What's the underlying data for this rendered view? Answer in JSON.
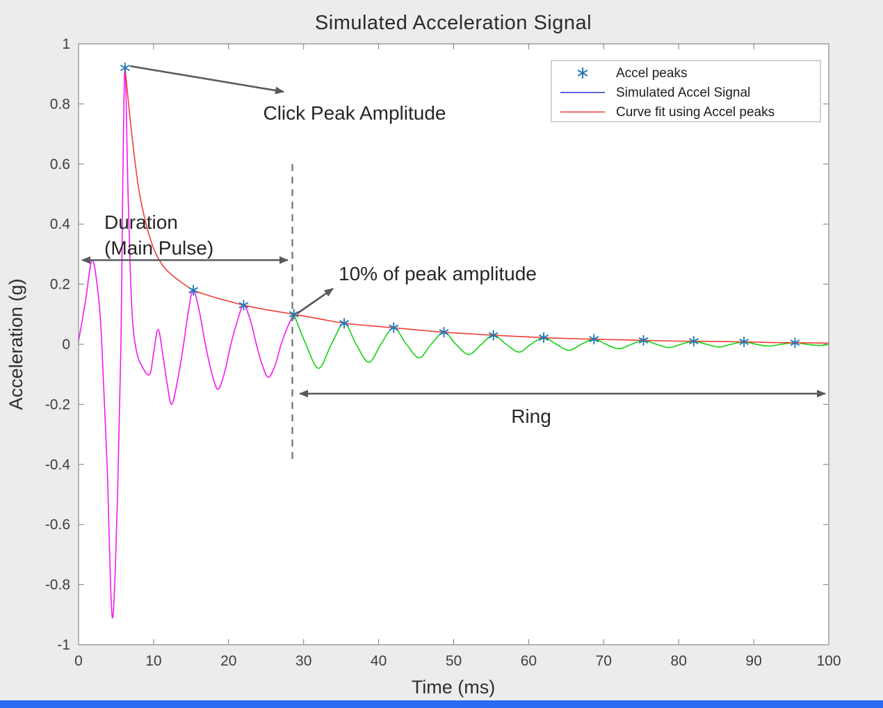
{
  "page": {
    "background_color": "#ececec",
    "accent_bar_color": "#2b6bf3"
  },
  "chart_data": {
    "type": "line",
    "title": "Simulated Acceleration Signal",
    "xlabel": "Time (ms)",
    "ylabel": "Acceleration (g)",
    "xlim": [
      0,
      100
    ],
    "ylim": [
      -1,
      1
    ],
    "grid": false,
    "xticks": [
      0,
      10,
      20,
      30,
      40,
      50,
      60,
      70,
      80,
      90,
      100
    ],
    "yticks": [
      -1,
      -0.8,
      -0.6,
      -0.4,
      -0.2,
      0,
      0.2,
      0.4,
      0.6,
      0.8,
      1
    ],
    "legend": {
      "position": "top-right",
      "entries": [
        {
          "label": "Accel peaks",
          "style": "asterisk-marker",
          "color": "#2478b4"
        },
        {
          "label": "Simulated Accel Signal",
          "style": "line",
          "color": "#3030d0"
        },
        {
          "label": "Curve fit using Accel peaks",
          "style": "line",
          "color": "#ee3e34"
        }
      ]
    },
    "series": [
      {
        "name": "main-pulse",
        "color": "#f416f4",
        "points": [
          [
            0,
            0.01
          ],
          [
            0.9,
            0.14
          ],
          [
            1.8,
            0.28
          ],
          [
            2.6,
            0.17
          ],
          [
            3.1,
            0
          ],
          [
            3.8,
            -0.4
          ],
          [
            4.5,
            -0.91
          ],
          [
            5.2,
            -0.5
          ],
          [
            5.65,
            0
          ],
          [
            5.9,
            0.55
          ],
          [
            6.2,
            0.92
          ],
          [
            6.6,
            0.5
          ],
          [
            7.1,
            0.12
          ],
          [
            7.7,
            -0.02
          ],
          [
            8.6,
            -0.08
          ],
          [
            9.5,
            -0.1
          ],
          [
            10,
            -0.03
          ],
          [
            10.6,
            0.05
          ],
          [
            11.2,
            -0.03
          ],
          [
            11.8,
            -0.13
          ],
          [
            12.4,
            -0.2
          ],
          [
            13.2,
            -0.12
          ],
          [
            14,
            0
          ],
          [
            14.7,
            0.12
          ],
          [
            15.3,
            0.18
          ],
          [
            16.1,
            0.11
          ],
          [
            16.9,
            0
          ],
          [
            17.8,
            -0.1
          ],
          [
            18.6,
            -0.15
          ],
          [
            19.5,
            -0.09
          ],
          [
            20.3,
            0
          ],
          [
            21.2,
            0.08
          ],
          [
            22,
            0.13
          ],
          [
            22.9,
            0.08
          ],
          [
            23.7,
            0
          ],
          [
            24.5,
            -0.07
          ],
          [
            25.3,
            -0.11
          ],
          [
            26.2,
            -0.07
          ],
          [
            27,
            0
          ],
          [
            27.9,
            0.06
          ],
          [
            28.7,
            0.1
          ]
        ]
      },
      {
        "name": "ring",
        "color": "#0fd30f",
        "points": [
          [
            28.7,
            0.1
          ],
          [
            30.3,
            0
          ],
          [
            32,
            -0.08
          ],
          [
            33.7,
            0
          ],
          [
            35.4,
            0.07
          ],
          [
            37,
            0
          ],
          [
            38.7,
            -0.06
          ],
          [
            40.3,
            0
          ],
          [
            42,
            0.055
          ],
          [
            43.7,
            0
          ],
          [
            45.4,
            -0.045
          ],
          [
            47,
            0
          ],
          [
            48.7,
            0.04
          ],
          [
            50.3,
            0
          ],
          [
            52,
            -0.034
          ],
          [
            53.7,
            0
          ],
          [
            55.3,
            0.03
          ],
          [
            57,
            0
          ],
          [
            58.7,
            -0.026
          ],
          [
            60.3,
            0
          ],
          [
            62,
            0.022
          ],
          [
            63.7,
            0
          ],
          [
            65.4,
            -0.02
          ],
          [
            67,
            0
          ],
          [
            68.7,
            0.017
          ],
          [
            70.3,
            0
          ],
          [
            72,
            -0.015
          ],
          [
            73.7,
            0
          ],
          [
            75.3,
            0.013
          ],
          [
            77,
            0
          ],
          [
            78.7,
            -0.011
          ],
          [
            80.3,
            0
          ],
          [
            82,
            0.01
          ],
          [
            83.7,
            0
          ],
          [
            85.4,
            -0.009
          ],
          [
            87,
            0
          ],
          [
            88.7,
            0.008
          ],
          [
            90.3,
            0
          ],
          [
            92,
            -0.006
          ],
          [
            93.7,
            0
          ],
          [
            95.5,
            0.005
          ],
          [
            97,
            0
          ],
          [
            98.7,
            -0.004
          ],
          [
            100,
            -0.001
          ]
        ]
      },
      {
        "name": "curve-fit",
        "color": "#ee3e34",
        "points": [
          [
            6.2,
            0.92
          ],
          [
            7,
            0.72
          ],
          [
            8,
            0.52
          ],
          [
            9,
            0.4
          ],
          [
            10,
            0.32
          ],
          [
            11,
            0.27
          ],
          [
            12,
            0.24
          ],
          [
            13.5,
            0.21
          ],
          [
            15.3,
            0.18
          ],
          [
            17,
            0.165
          ],
          [
            19,
            0.15
          ],
          [
            20.5,
            0.14
          ],
          [
            22,
            0.13
          ],
          [
            25,
            0.115
          ],
          [
            28.7,
            0.1
          ],
          [
            32,
            0.085
          ],
          [
            35.4,
            0.07
          ],
          [
            38.7,
            0.062
          ],
          [
            42,
            0.055
          ],
          [
            45.4,
            0.047
          ],
          [
            48.7,
            0.04
          ],
          [
            52,
            0.035
          ],
          [
            55.3,
            0.03
          ],
          [
            58.7,
            0.026
          ],
          [
            62,
            0.022
          ],
          [
            65.4,
            0.019
          ],
          [
            68.7,
            0.017
          ],
          [
            72,
            0.015
          ],
          [
            75.3,
            0.013
          ],
          [
            78.7,
            0.011
          ],
          [
            82,
            0.01
          ],
          [
            85.4,
            0.009
          ],
          [
            88.7,
            0.008
          ],
          [
            92,
            0.006
          ],
          [
            95.5,
            0.005
          ],
          [
            100,
            0.004
          ]
        ]
      }
    ],
    "peaks": {
      "name": "accel-peaks",
      "color": "#2478b4",
      "points": [
        [
          6.2,
          0.92
        ],
        [
          15.3,
          0.18
        ],
        [
          22,
          0.13
        ],
        [
          28.7,
          0.1
        ],
        [
          35.4,
          0.07
        ],
        [
          42,
          0.055
        ],
        [
          48.7,
          0.04
        ],
        [
          55.3,
          0.03
        ],
        [
          62,
          0.022
        ],
        [
          68.7,
          0.017
        ],
        [
          75.3,
          0.013
        ],
        [
          82,
          0.01
        ],
        [
          88.7,
          0.008
        ],
        [
          95.5,
          0.005
        ]
      ]
    },
    "annotations": {
      "click_peak": "Click Peak Amplitude",
      "duration_line1": "Duration",
      "duration_line2": "(Main Pulse)",
      "ten_percent": "10% of peak amplitude",
      "ring": "Ring"
    }
  }
}
